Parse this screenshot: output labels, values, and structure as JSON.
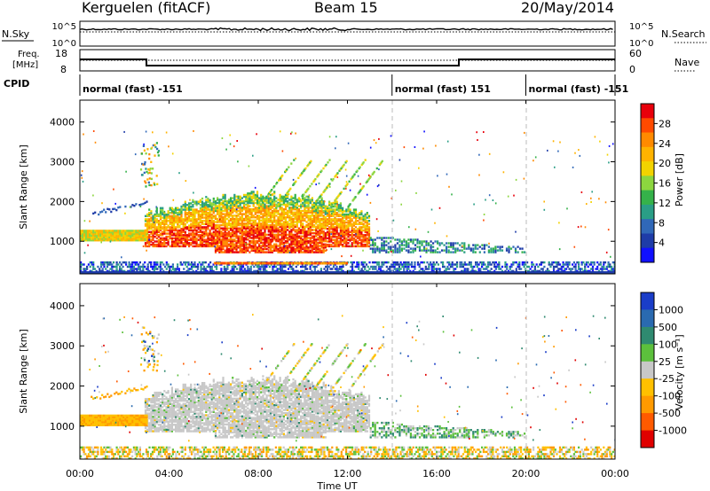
{
  "header": {
    "station": "Kerguelen (fitACF)",
    "beam": "Beam 15",
    "date": "20/May/2014"
  },
  "side_labels": {
    "nsky": "N.Sky",
    "nsearch": "N.Search",
    "freq_line1": "Freq.",
    "freq_line2": "[MHz]",
    "nave": "Nave",
    "cpid": "CPID"
  },
  "noise_axis": {
    "left_ticks": [
      "10^5",
      "10^0"
    ],
    "right_ticks": [
      "10^5",
      "10^0"
    ]
  },
  "freq_axis": {
    "left_ticks": [
      "18",
      "8"
    ],
    "right_ticks": [
      "60",
      "0"
    ]
  },
  "cpid_segments": [
    {
      "label": "normal (fast) -151",
      "start_hour": 0,
      "end_hour": 14
    },
    {
      "label": "normal (fast) 151",
      "start_hour": 14,
      "end_hour": 20
    },
    {
      "label": "normal (fast) -151",
      "start_hour": 20,
      "end_hour": 24
    }
  ],
  "chart_data": [
    {
      "type": "heatmap",
      "panel": "power",
      "ylabel": "Slant Range [km]",
      "ylim": [
        180,
        4550
      ],
      "yticks": [
        1000,
        2000,
        3000,
        4000
      ],
      "xlim": [
        0,
        24
      ],
      "colorbar": {
        "label": "Power [dB]",
        "ticks": [
          "28",
          "24",
          "20",
          "16",
          "12",
          "8",
          "4"
        ],
        "colors": [
          "#e8000b",
          "#ff4a00",
          "#ff8a00",
          "#ffb300",
          "#f2d300",
          "#8cd63f",
          "#35b24a",
          "#2a9e86",
          "#3068b8",
          "#1e3ca8",
          "#1010ff"
        ]
      },
      "features": [
        {
          "desc": "strong scatter",
          "hours": [
            3,
            13
          ],
          "range_km": [
            700,
            2300
          ],
          "power_db": 24
        },
        {
          "desc": "early ionospheric band",
          "hours": [
            0,
            3
          ],
          "range_km": [
            1050,
            1300
          ],
          "power_db": 16
        },
        {
          "desc": "weak band after 13 UT",
          "hours": [
            13,
            20
          ],
          "range_km": [
            700,
            1150
          ],
          "power_db": 8
        },
        {
          "desc": "ground scatter near radar",
          "hours": [
            0,
            24
          ],
          "range_km": [
            200,
            500
          ],
          "power_db": 6
        }
      ]
    },
    {
      "type": "heatmap",
      "panel": "velocity",
      "ylabel": "Slant Range [km]",
      "ylim": [
        180,
        4550
      ],
      "yticks": [
        1000,
        2000,
        3000,
        4000
      ],
      "xlim": [
        0,
        24
      ],
      "xticks": [
        "00:00",
        "04:00",
        "08:00",
        "12:00",
        "16:00",
        "20:00",
        "00:00"
      ],
      "xlabel": "Time UT",
      "colorbar": {
        "label": "Velocity [m s⁻¹]",
        "ticks": [
          "1000",
          "500",
          "100",
          "25",
          "-25",
          "-100",
          "-500",
          "-1000"
        ],
        "colors": [
          "#1a3dc8",
          "#2a6ab0",
          "#2f8a70",
          "#5cc03c",
          "#c8c8c8",
          "#ffc000",
          "#ff9a00",
          "#ff5a00",
          "#e00000"
        ]
      },
      "features": [
        {
          "desc": "low-velocity scatter",
          "hours": [
            3,
            13
          ],
          "range_km": [
            700,
            2300
          ],
          "velocity_ms": 0
        },
        {
          "desc": "early band, towards negative",
          "hours": [
            0,
            3
          ],
          "range_km": [
            1050,
            1300
          ],
          "velocity_ms": -100
        },
        {
          "desc": "band after 13 UT",
          "hours": [
            13,
            20
          ],
          "range_km": [
            700,
            1150
          ],
          "velocity_ms": 100
        },
        {
          "desc": "near-range scatter",
          "hours": [
            0,
            24
          ],
          "range_km": [
            200,
            500
          ],
          "velocity_ms": -100
        }
      ]
    }
  ]
}
